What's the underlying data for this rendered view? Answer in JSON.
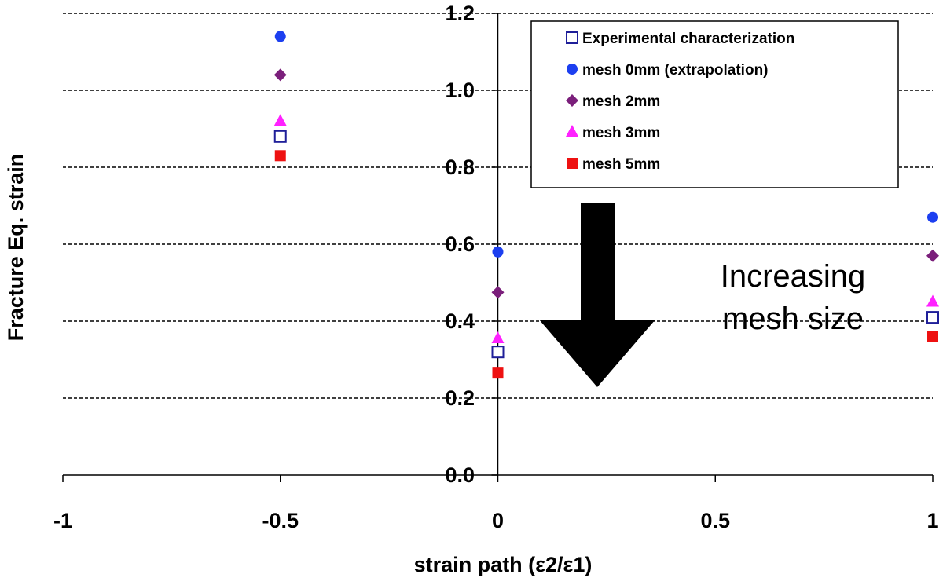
{
  "chart_data": {
    "type": "scatter",
    "title": "",
    "xlabel": "strain path (ε2/ε1)",
    "ylabel": "Fracture Eq. strain",
    "xlim": [
      -1,
      1
    ],
    "ylim": [
      0,
      1.2
    ],
    "x_ticks": [
      -1,
      -0.5,
      0,
      0.5,
      1
    ],
    "x_tick_labels": [
      "-1",
      "-0.5",
      "0",
      "0.5",
      "1"
    ],
    "y_ticks": [
      0,
      0.2,
      0.4,
      0.6,
      0.8,
      1.0,
      1.2
    ],
    "y_tick_labels": [
      "0.0",
      "0.2",
      "0.4",
      "0.6",
      "0.8",
      "1.0",
      "1.2"
    ],
    "grid": "horizontal dashed",
    "legend_position": "top-right",
    "series": [
      {
        "name": "Experimental characterization",
        "marker": "open-square",
        "color": "#1f1f99",
        "x": [
          -0.5,
          0,
          1
        ],
        "y": [
          0.88,
          0.32,
          0.41
        ]
      },
      {
        "name": "mesh 0mm (extrapolation)",
        "marker": "circle",
        "color": "#1c3ff0",
        "x": [
          -0.5,
          0,
          1
        ],
        "y": [
          1.14,
          0.58,
          0.67
        ]
      },
      {
        "name": "mesh 2mm",
        "marker": "diamond",
        "color": "#7b1f7b",
        "x": [
          -0.5,
          0,
          1
        ],
        "y": [
          1.04,
          0.475,
          0.57
        ]
      },
      {
        "name": "mesh 3mm",
        "marker": "triangle",
        "color": "#ff21ff",
        "x": [
          -0.5,
          0,
          1
        ],
        "y": [
          0.92,
          0.355,
          0.45
        ]
      },
      {
        "name": "mesh 5mm",
        "marker": "filled-square",
        "color": "#ee1111",
        "x": [
          -0.5,
          0,
          1
        ],
        "y": [
          0.83,
          0.265,
          0.36
        ]
      }
    ],
    "annotations": [
      {
        "text_lines": [
          "Increasing",
          "mesh size"
        ],
        "arrow": "down"
      }
    ]
  }
}
